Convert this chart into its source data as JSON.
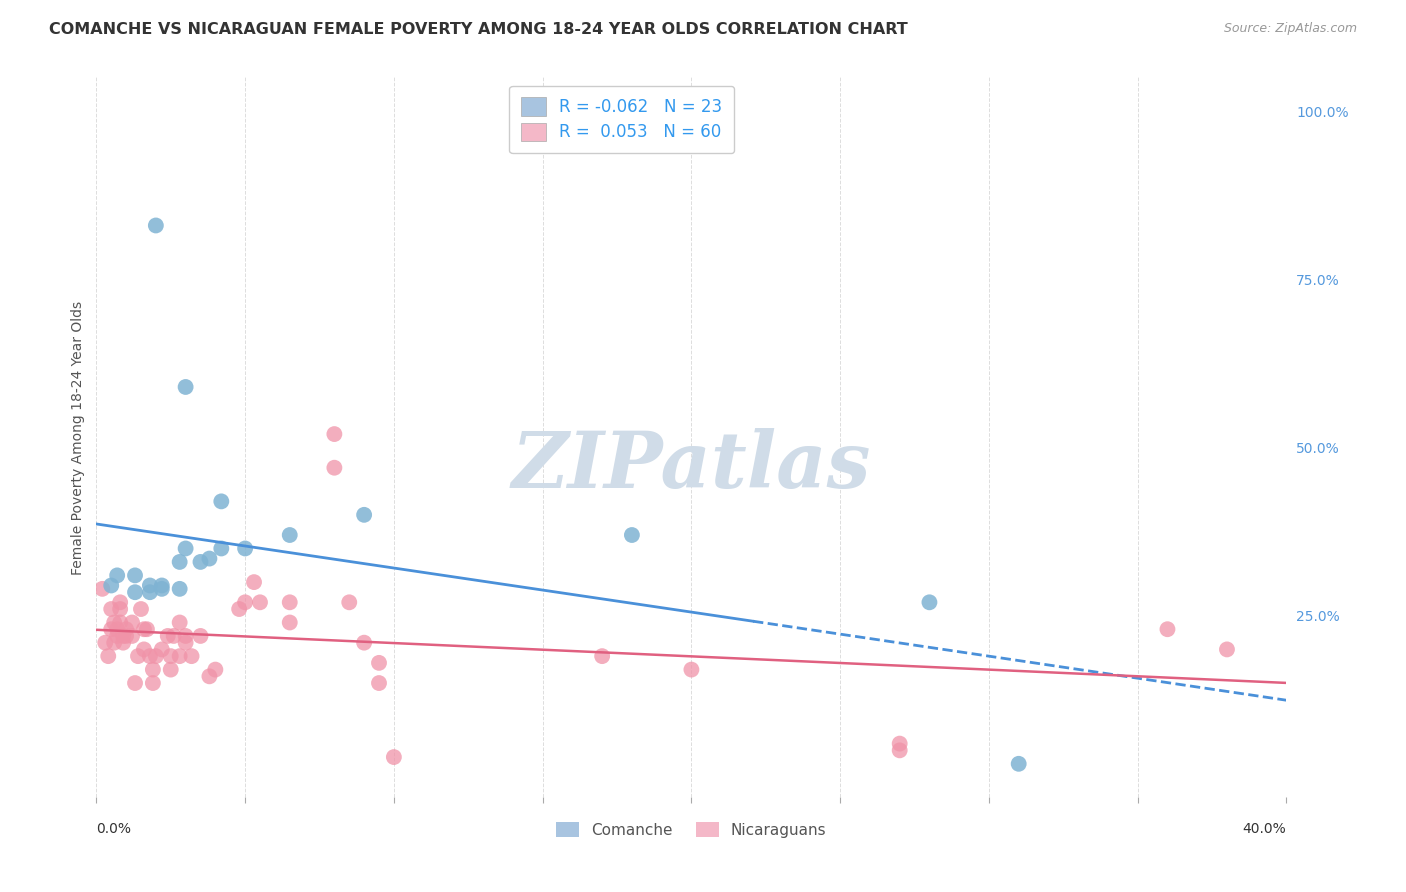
{
  "title": "COMANCHE VS NICARAGUAN FEMALE POVERTY AMONG 18-24 YEAR OLDS CORRELATION CHART",
  "source": "Source: ZipAtlas.com",
  "ylabel": "Female Poverty Among 18-24 Year Olds",
  "right_yticks": [
    "100.0%",
    "75.0%",
    "50.0%",
    "25.0%"
  ],
  "right_ytick_vals": [
    1.0,
    0.75,
    0.5,
    0.25
  ],
  "xlim": [
    0.0,
    0.4
  ],
  "ylim": [
    -0.02,
    1.05
  ],
  "comanche_R": "-0.062",
  "comanche_N": "23",
  "nicaraguan_R": "0.053",
  "nicaraguan_N": "60",
  "legend_color_comanche": "#a8c4e0",
  "legend_color_nicaraguan": "#f4b8c8",
  "comanche_color": "#7fb3d3",
  "nicaraguan_color": "#f093a8",
  "trend_comanche_color": "#4a90d9",
  "trend_nicaraguan_color": "#e06080",
  "background": "#ffffff",
  "grid_color": "#dddddd",
  "watermark_color": "#d0dce8",
  "comanche_x": [
    0.005,
    0.007,
    0.013,
    0.013,
    0.018,
    0.018,
    0.02,
    0.022,
    0.022,
    0.028,
    0.028,
    0.03,
    0.03,
    0.035,
    0.038,
    0.042,
    0.042,
    0.05,
    0.065,
    0.09,
    0.18,
    0.28,
    0.31
  ],
  "comanche_y": [
    0.295,
    0.31,
    0.31,
    0.285,
    0.295,
    0.285,
    0.83,
    0.295,
    0.29,
    0.33,
    0.29,
    0.59,
    0.35,
    0.33,
    0.335,
    0.42,
    0.35,
    0.35,
    0.37,
    0.4,
    0.37,
    0.27,
    0.03
  ],
  "nicaraguan_x": [
    0.002,
    0.003,
    0.004,
    0.005,
    0.005,
    0.006,
    0.006,
    0.007,
    0.007,
    0.008,
    0.008,
    0.008,
    0.009,
    0.009,
    0.01,
    0.01,
    0.012,
    0.012,
    0.013,
    0.014,
    0.015,
    0.016,
    0.016,
    0.017,
    0.018,
    0.019,
    0.019,
    0.02,
    0.022,
    0.024,
    0.025,
    0.025,
    0.026,
    0.028,
    0.028,
    0.03,
    0.03,
    0.032,
    0.035,
    0.038,
    0.04,
    0.048,
    0.05,
    0.053,
    0.055,
    0.065,
    0.065,
    0.08,
    0.08,
    0.085,
    0.09,
    0.095,
    0.095,
    0.1,
    0.17,
    0.2,
    0.27,
    0.27,
    0.36,
    0.38
  ],
  "nicaraguan_y": [
    0.29,
    0.21,
    0.19,
    0.26,
    0.23,
    0.24,
    0.21,
    0.22,
    0.23,
    0.27,
    0.26,
    0.24,
    0.22,
    0.21,
    0.23,
    0.22,
    0.22,
    0.24,
    0.15,
    0.19,
    0.26,
    0.2,
    0.23,
    0.23,
    0.19,
    0.17,
    0.15,
    0.19,
    0.2,
    0.22,
    0.19,
    0.17,
    0.22,
    0.19,
    0.24,
    0.22,
    0.21,
    0.19,
    0.22,
    0.16,
    0.17,
    0.26,
    0.27,
    0.3,
    0.27,
    0.27,
    0.24,
    0.52,
    0.47,
    0.27,
    0.21,
    0.18,
    0.15,
    0.04,
    0.19,
    0.17,
    0.05,
    0.06,
    0.23,
    0.2
  ],
  "trend_split_x": 0.22
}
